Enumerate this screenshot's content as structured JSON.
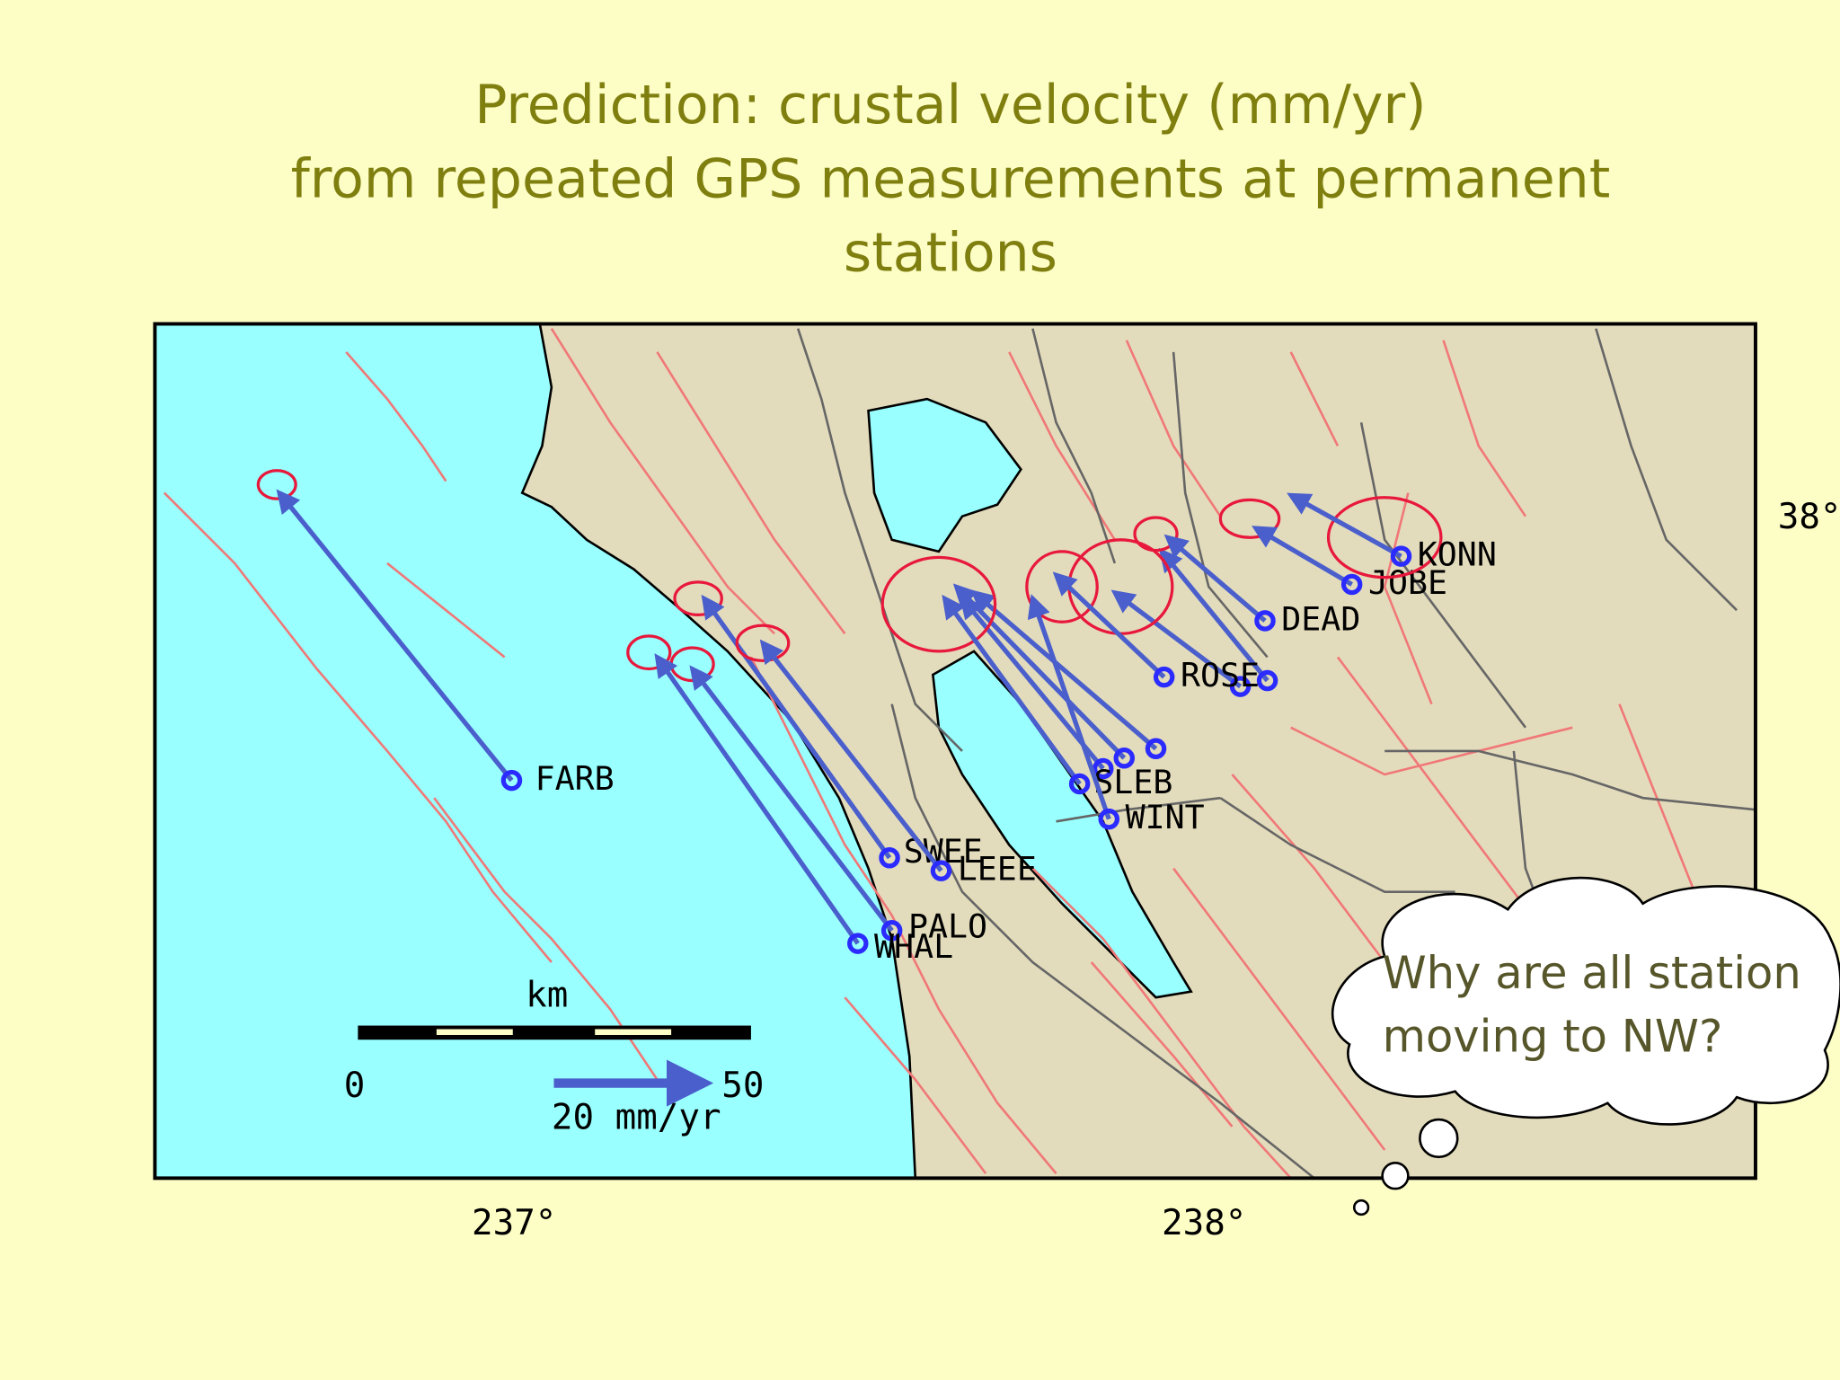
{
  "title": [
    "Prediction: crustal velocity (mm/yr)",
    "from repeated GPS measurements at permanent",
    "stations"
  ],
  "map": {
    "stations": [
      {
        "label": "FARB"
      },
      {
        "label": "SWEE"
      },
      {
        "label": "LEEE"
      },
      {
        "label": "PALO"
      },
      {
        "label": "WHAL"
      },
      {
        "label": "SLEB"
      },
      {
        "label": "WINT"
      },
      {
        "label": "ROSE"
      },
      {
        "label": "DEAD"
      },
      {
        "label": "JOBE"
      },
      {
        "label": "KONN"
      }
    ],
    "longitude_labels": [
      "237°",
      "238°"
    ],
    "latitude_labels": [
      "38°"
    ],
    "scale": {
      "unit": "km",
      "ticks": [
        "0",
        "50"
      ],
      "arrow_label": "20 mm/yr"
    }
  },
  "callout": [
    "Why are all station",
    "moving  to NW?"
  ]
}
